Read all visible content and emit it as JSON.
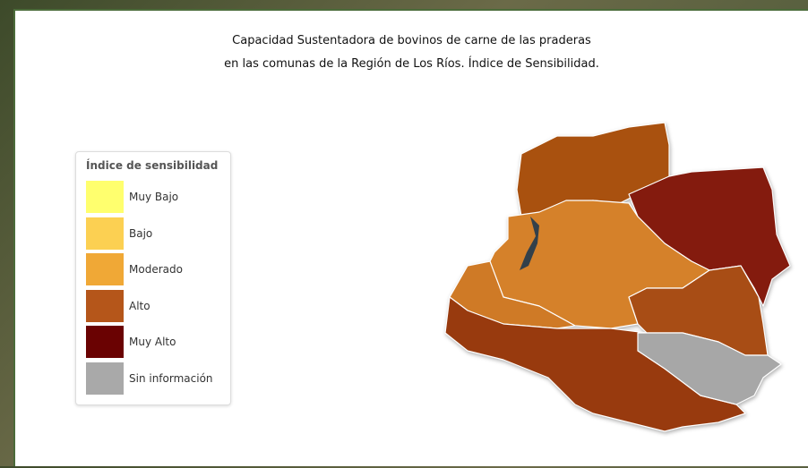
{
  "title": {
    "line1": "Capacidad Sustentadora de bovinos de carne de las praderas",
    "line2": "en las comunas de la Región de Los Ríos. Índice de Sensibilidad."
  },
  "legend": {
    "title": "Índice de sensibilidad",
    "items": [
      {
        "label": "Muy Bajo",
        "color": "#ffff6e"
      },
      {
        "label": "Bajo",
        "color": "#fcd052"
      },
      {
        "label": "Moderado",
        "color": "#f0a836"
      },
      {
        "label": "Alto",
        "color": "#b5561a"
      },
      {
        "label": "Muy Alto",
        "color": "#6a0202"
      },
      {
        "label": "Sin información",
        "color": "#a9a9a9"
      }
    ]
  }
}
